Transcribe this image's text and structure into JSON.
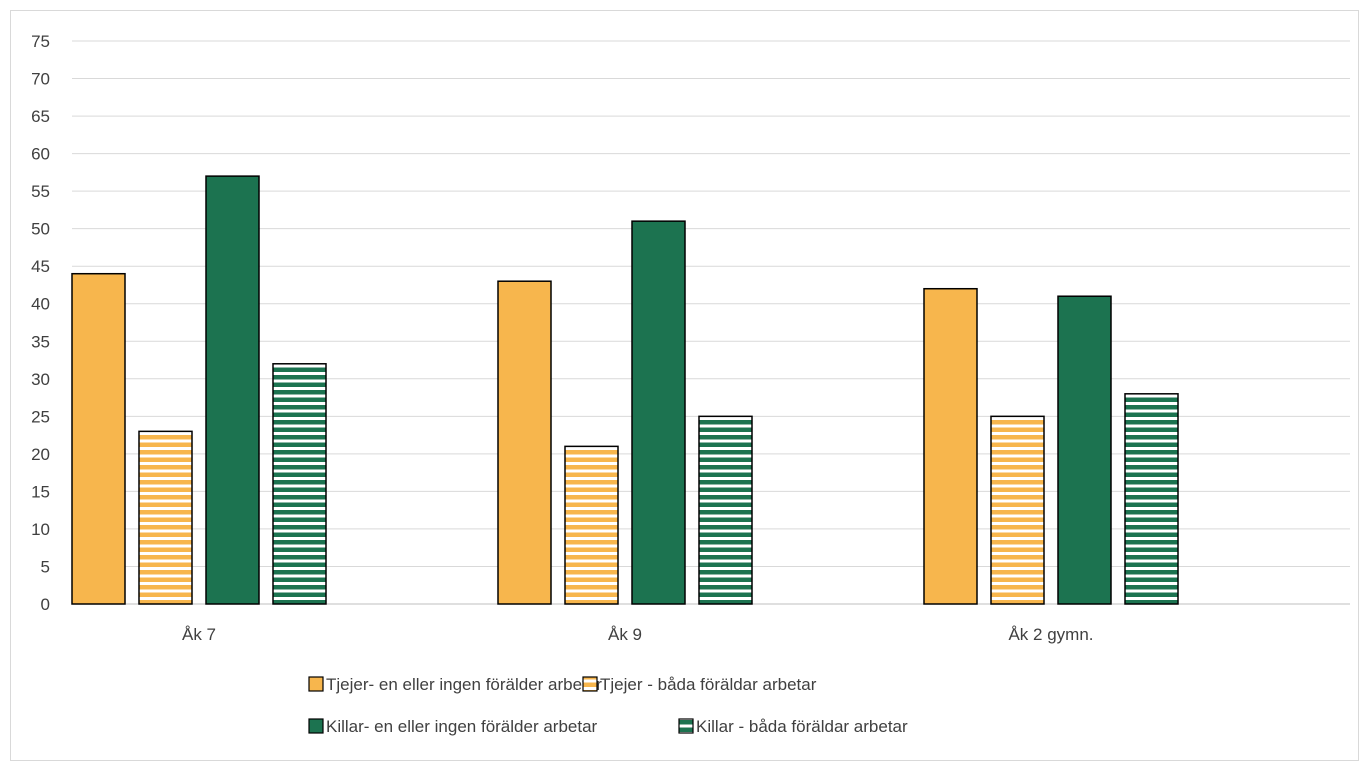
{
  "chart_data": {
    "type": "bar",
    "title": "",
    "xlabel": "",
    "ylabel": "",
    "ylim": [
      0,
      75
    ],
    "ytick_step": 5,
    "grid": true,
    "legend_placement": "bottom",
    "categories": [
      "Åk 7",
      "Åk 9",
      "Åk 2 gymn."
    ],
    "series": [
      {
        "name": "Tjejer- en eller ingen förälder arbetar",
        "values": [
          44,
          43,
          42
        ],
        "color": "#f7b64d",
        "pattern": "solid"
      },
      {
        "name": "Tjejer - båda föräldar arbetar",
        "values": [
          23,
          21,
          25
        ],
        "color": "#f7b64d",
        "pattern": "horizontal-stripes"
      },
      {
        "name": "Killar- en eller ingen förälder arbetar",
        "values": [
          57,
          51,
          41
        ],
        "color": "#1c7350",
        "pattern": "solid"
      },
      {
        "name": "Killar - båda föräldar arbetar",
        "values": [
          32,
          25,
          28
        ],
        "color": "#1c7350",
        "pattern": "horizontal-stripes"
      }
    ]
  }
}
